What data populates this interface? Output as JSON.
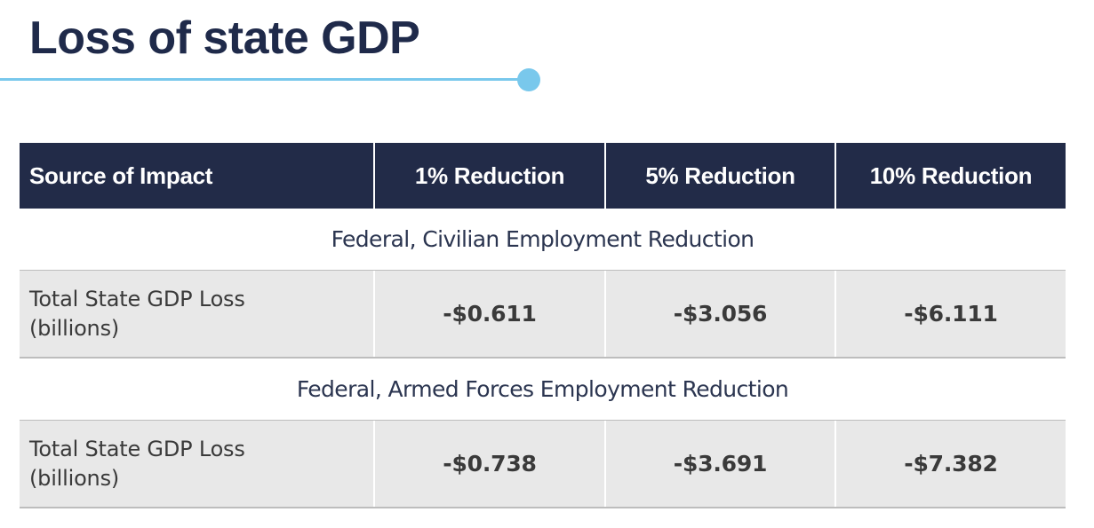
{
  "title": "Loss of state GDP",
  "colors": {
    "accent": "#79c8ec",
    "header_bg": "#222b48",
    "title": "#1f2a4a",
    "row_bg": "#e8e8e8"
  },
  "table": {
    "headers": [
      "Source of Impact",
      "1% Reduction",
      "5% Reduction",
      "10% Reduction"
    ],
    "sections": [
      {
        "heading": "Federal, Civilian Employment Reduction",
        "row": {
          "label": "Total State GDP Loss\n(billions)",
          "values": [
            "-$0.611",
            "-$3.056",
            "-$6.111"
          ]
        }
      },
      {
        "heading": "Federal, Armed Forces Employment Reduction",
        "row": {
          "label": "Total State GDP Loss\n(billions)",
          "values": [
            "-$0.738",
            "-$3.691",
            "-$7.382"
          ]
        }
      }
    ]
  }
}
